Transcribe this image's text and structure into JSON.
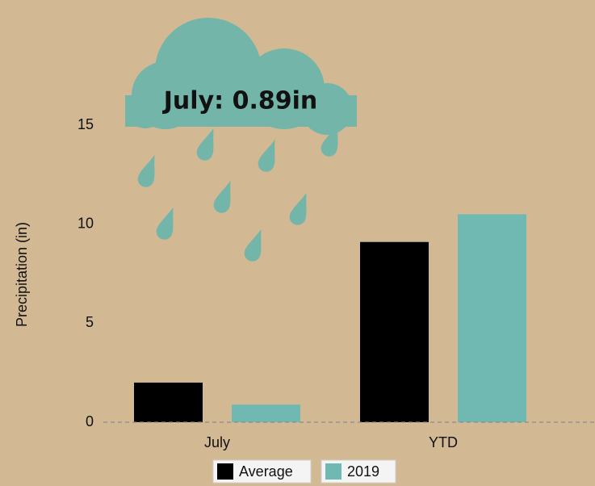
{
  "chart_data": {
    "type": "bar",
    "annotation": "July: 0.89in",
    "y_label": "Precipitation (in)",
    "categories": [
      "July",
      "YTD"
    ],
    "series": [
      {
        "name": "Average",
        "color": "#000000",
        "values": [
          2.0,
          9.1
        ]
      },
      {
        "name": "2019",
        "color": "#6fb9b2",
        "values": [
          0.89,
          10.5
        ]
      }
    ],
    "ylim": [
      0,
      15
    ],
    "yticks": [
      0,
      5,
      10,
      15
    ]
  }
}
